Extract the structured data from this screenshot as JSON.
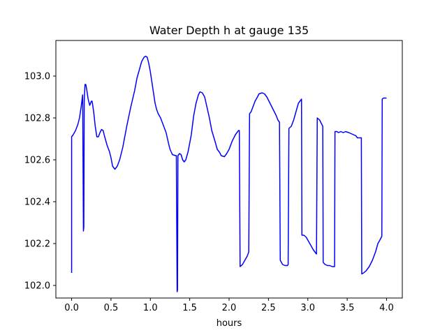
{
  "chart_data": {
    "type": "line",
    "title": "Water Depth h at gauge 135",
    "xlabel": "hours",
    "ylabel": "",
    "xlim": [
      -0.2,
      4.2
    ],
    "ylim": [
      101.94,
      103.17
    ],
    "x_ticks": [
      0.0,
      0.5,
      1.0,
      1.5,
      2.0,
      2.5,
      3.0,
      3.5,
      4.0
    ],
    "x_tick_labels": [
      "0.0",
      "0.5",
      "1.0",
      "1.5",
      "2.0",
      "2.5",
      "3.0",
      "3.5",
      "4.0"
    ],
    "y_ticks": [
      102.0,
      102.2,
      102.4,
      102.6,
      102.8,
      103.0
    ],
    "y_tick_labels": [
      "102.0",
      "102.2",
      "102.4",
      "102.6",
      "102.8",
      "103.0"
    ],
    "grid": false,
    "legend": "none",
    "series": [
      {
        "color": "#0000ff",
        "points": [
          [
            0.0,
            102.06
          ],
          [
            0.0,
            102.71
          ],
          [
            0.02,
            102.72
          ],
          [
            0.05,
            102.74
          ],
          [
            0.08,
            102.77
          ],
          [
            0.1,
            102.8
          ],
          [
            0.12,
            102.85
          ],
          [
            0.14,
            102.91
          ],
          [
            0.15,
            102.26
          ],
          [
            0.155,
            102.28
          ],
          [
            0.16,
            102.88
          ],
          [
            0.17,
            102.96
          ],
          [
            0.18,
            102.96
          ],
          [
            0.19,
            102.94
          ],
          [
            0.21,
            102.89
          ],
          [
            0.23,
            102.86
          ],
          [
            0.25,
            102.88
          ],
          [
            0.26,
            102.88
          ],
          [
            0.28,
            102.83
          ],
          [
            0.3,
            102.76
          ],
          [
            0.32,
            102.71
          ],
          [
            0.34,
            102.71
          ],
          [
            0.36,
            102.73
          ],
          [
            0.38,
            102.745
          ],
          [
            0.4,
            102.74
          ],
          [
            0.42,
            102.71
          ],
          [
            0.45,
            102.67
          ],
          [
            0.48,
            102.64
          ],
          [
            0.5,
            102.61
          ],
          [
            0.52,
            102.57
          ],
          [
            0.55,
            102.555
          ],
          [
            0.58,
            102.57
          ],
          [
            0.61,
            102.6
          ],
          [
            0.65,
            102.66
          ],
          [
            0.7,
            102.76
          ],
          [
            0.75,
            102.85
          ],
          [
            0.8,
            102.93
          ],
          [
            0.83,
            102.99
          ],
          [
            0.86,
            103.03
          ],
          [
            0.89,
            103.07
          ],
          [
            0.92,
            103.09
          ],
          [
            0.94,
            103.095
          ],
          [
            0.96,
            103.09
          ],
          [
            0.98,
            103.06
          ],
          [
            1.0,
            103.02
          ],
          [
            1.02,
            102.97
          ],
          [
            1.04,
            102.92
          ],
          [
            1.06,
            102.87
          ],
          [
            1.08,
            102.84
          ],
          [
            1.1,
            102.82
          ],
          [
            1.13,
            102.8
          ],
          [
            1.16,
            102.77
          ],
          [
            1.2,
            102.73
          ],
          [
            1.23,
            102.68
          ],
          [
            1.25,
            102.65
          ],
          [
            1.28,
            102.625
          ],
          [
            1.32,
            102.62
          ],
          [
            1.33,
            102.62
          ],
          [
            1.34,
            101.97
          ],
          [
            1.345,
            101.98
          ],
          [
            1.35,
            102.62
          ],
          [
            1.37,
            102.63
          ],
          [
            1.39,
            102.625
          ],
          [
            1.41,
            102.6
          ],
          [
            1.43,
            102.59
          ],
          [
            1.45,
            102.6
          ],
          [
            1.48,
            102.64
          ],
          [
            1.52,
            102.72
          ],
          [
            1.55,
            102.81
          ],
          [
            1.58,
            102.87
          ],
          [
            1.61,
            102.91
          ],
          [
            1.63,
            102.925
          ],
          [
            1.66,
            102.92
          ],
          [
            1.69,
            102.9
          ],
          [
            1.72,
            102.85
          ],
          [
            1.75,
            102.8
          ],
          [
            1.78,
            102.74
          ],
          [
            1.82,
            102.69
          ],
          [
            1.85,
            102.65
          ],
          [
            1.88,
            102.635
          ],
          [
            1.9,
            102.62
          ],
          [
            1.94,
            102.615
          ],
          [
            1.97,
            102.63
          ],
          [
            2.0,
            102.65
          ],
          [
            2.04,
            102.69
          ],
          [
            2.08,
            102.72
          ],
          [
            2.12,
            102.74
          ],
          [
            2.13,
            102.74
          ],
          [
            2.14,
            102.09
          ],
          [
            2.17,
            102.1
          ],
          [
            2.2,
            102.12
          ],
          [
            2.23,
            102.14
          ],
          [
            2.25,
            102.16
          ],
          [
            2.26,
            102.82
          ],
          [
            2.28,
            102.83
          ],
          [
            2.3,
            102.85
          ],
          [
            2.33,
            102.88
          ],
          [
            2.36,
            102.9
          ],
          [
            2.38,
            102.915
          ],
          [
            2.42,
            102.92
          ],
          [
            2.45,
            102.915
          ],
          [
            2.48,
            102.9
          ],
          [
            2.52,
            102.87
          ],
          [
            2.56,
            102.84
          ],
          [
            2.6,
            102.81
          ],
          [
            2.62,
            102.79
          ],
          [
            2.64,
            102.78
          ],
          [
            2.65,
            102.12
          ],
          [
            2.68,
            102.1
          ],
          [
            2.71,
            102.095
          ],
          [
            2.74,
            102.095
          ],
          [
            2.75,
            102.1
          ],
          [
            2.76,
            102.75
          ],
          [
            2.79,
            102.76
          ],
          [
            2.82,
            102.79
          ],
          [
            2.85,
            102.83
          ],
          [
            2.88,
            102.87
          ],
          [
            2.91,
            102.885
          ],
          [
            2.92,
            102.89
          ],
          [
            2.925,
            102.24
          ],
          [
            2.95,
            102.24
          ],
          [
            2.98,
            102.23
          ],
          [
            3.01,
            102.21
          ],
          [
            3.04,
            102.19
          ],
          [
            3.07,
            102.17
          ],
          [
            3.11,
            102.15
          ],
          [
            3.12,
            102.8
          ],
          [
            3.15,
            102.79
          ],
          [
            3.17,
            102.775
          ],
          [
            3.19,
            102.76
          ],
          [
            3.195,
            102.11
          ],
          [
            3.22,
            102.1
          ],
          [
            3.25,
            102.095
          ],
          [
            3.28,
            102.095
          ],
          [
            3.31,
            102.09
          ],
          [
            3.34,
            102.09
          ],
          [
            3.345,
            102.735
          ],
          [
            3.37,
            102.735
          ],
          [
            3.39,
            102.73
          ],
          [
            3.42,
            102.735
          ],
          [
            3.45,
            102.73
          ],
          [
            3.48,
            102.735
          ],
          [
            3.52,
            102.73
          ],
          [
            3.55,
            102.725
          ],
          [
            3.58,
            102.72
          ],
          [
            3.61,
            102.715
          ],
          [
            3.63,
            102.705
          ],
          [
            3.66,
            102.705
          ],
          [
            3.68,
            102.705
          ],
          [
            3.685,
            102.055
          ],
          [
            3.71,
            102.06
          ],
          [
            3.74,
            102.07
          ],
          [
            3.78,
            102.09
          ],
          [
            3.82,
            102.12
          ],
          [
            3.86,
            102.16
          ],
          [
            3.89,
            102.2
          ],
          [
            3.92,
            102.22
          ],
          [
            3.94,
            102.235
          ],
          [
            3.945,
            102.89
          ],
          [
            3.96,
            102.895
          ],
          [
            3.98,
            102.895
          ],
          [
            4.0,
            102.895
          ]
        ]
      }
    ]
  }
}
